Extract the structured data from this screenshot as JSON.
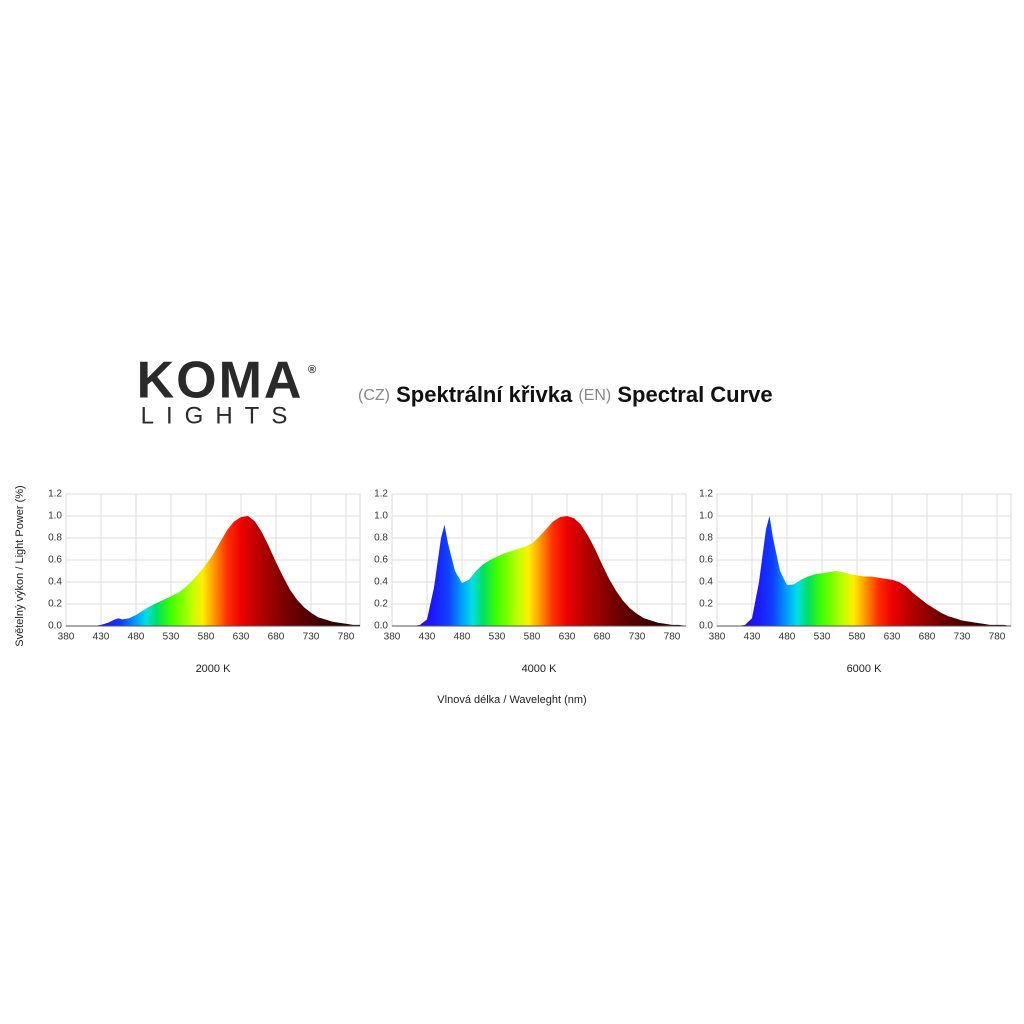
{
  "header": {
    "logo": "KOMA",
    "logo_sub": "LIGHTS",
    "registered": "®",
    "title_parts": [
      "(CZ)",
      "Spektrální křivka",
      "(EN)",
      "Spectral Curve"
    ]
  },
  "axes": {
    "y_label": "Světelný výkon / Light Power (%)",
    "x_label": "Vlnová délka / Waveleght (nm)"
  },
  "spectrum": [
    {
      "nm": 400,
      "color": "#3a00b0"
    },
    {
      "nm": 440,
      "color": "#1a1aff"
    },
    {
      "nm": 460,
      "color": "#1040ff"
    },
    {
      "nm": 480,
      "color": "#00a0ff"
    },
    {
      "nm": 495,
      "color": "#00e0e0"
    },
    {
      "nm": 510,
      "color": "#00e060"
    },
    {
      "nm": 530,
      "color": "#40ff00"
    },
    {
      "nm": 560,
      "color": "#c0ff00"
    },
    {
      "nm": 575,
      "color": "#ffee00"
    },
    {
      "nm": 590,
      "color": "#ffa000"
    },
    {
      "nm": 610,
      "color": "#ff3000"
    },
    {
      "nm": 630,
      "color": "#ee0000"
    },
    {
      "nm": 660,
      "color": "#b00000"
    },
    {
      "nm": 700,
      "color": "#700000"
    },
    {
      "nm": 750,
      "color": "#3a0000"
    },
    {
      "nm": 790,
      "color": "#200000"
    }
  ],
  "chart_data": [
    {
      "type": "area",
      "title": "2000 K",
      "fill": "spectrum",
      "x": [
        380,
        390,
        400,
        410,
        420,
        430,
        440,
        450,
        455,
        460,
        470,
        480,
        490,
        500,
        510,
        520,
        530,
        540,
        550,
        560,
        570,
        580,
        590,
        600,
        610,
        620,
        630,
        640,
        650,
        660,
        670,
        680,
        690,
        700,
        710,
        720,
        730,
        740,
        750,
        760,
        770,
        780,
        790,
        800
      ],
      "values": [
        0,
        0,
        0,
        0,
        0,
        0.01,
        0.03,
        0.06,
        0.07,
        0.06,
        0.07,
        0.1,
        0.14,
        0.18,
        0.21,
        0.24,
        0.27,
        0.3,
        0.35,
        0.41,
        0.48,
        0.56,
        0.65,
        0.76,
        0.87,
        0.95,
        0.99,
        1.0,
        0.95,
        0.85,
        0.72,
        0.58,
        0.45,
        0.33,
        0.24,
        0.17,
        0.12,
        0.08,
        0.06,
        0.04,
        0.03,
        0.02,
        0.01,
        0.01
      ],
      "xlim": [
        380,
        800
      ],
      "xticks": [
        380,
        430,
        480,
        530,
        580,
        630,
        680,
        730,
        780
      ],
      "ylim": [
        0,
        1.2
      ],
      "yticks": [
        {
          "value": 0,
          "label": "0.0"
        },
        0.2,
        0.4,
        0.6,
        0.8,
        {
          "value": 1,
          "label": "1.0"
        },
        1.2
      ],
      "grid": true
    },
    {
      "type": "area",
      "title": "4000 K",
      "fill": "spectrum",
      "x": [
        380,
        390,
        400,
        410,
        420,
        430,
        440,
        450,
        455,
        460,
        470,
        480,
        490,
        500,
        510,
        520,
        530,
        540,
        550,
        560,
        570,
        580,
        590,
        600,
        610,
        620,
        630,
        640,
        650,
        660,
        670,
        680,
        690,
        700,
        710,
        720,
        730,
        740,
        750,
        760,
        770,
        780,
        790,
        800
      ],
      "values": [
        0,
        0,
        0,
        0,
        0.01,
        0.06,
        0.35,
        0.8,
        0.92,
        0.75,
        0.5,
        0.39,
        0.42,
        0.5,
        0.56,
        0.6,
        0.63,
        0.66,
        0.68,
        0.7,
        0.72,
        0.75,
        0.81,
        0.88,
        0.95,
        0.99,
        1.0,
        0.98,
        0.92,
        0.82,
        0.7,
        0.56,
        0.43,
        0.32,
        0.23,
        0.16,
        0.11,
        0.07,
        0.05,
        0.03,
        0.02,
        0.01,
        0.01,
        0
      ],
      "xlim": [
        380,
        800
      ],
      "xticks": [
        380,
        430,
        480,
        530,
        580,
        630,
        680,
        730,
        780
      ],
      "ylim": [
        0,
        1.2
      ],
      "yticks": [
        {
          "value": 0,
          "label": "0.0"
        },
        0.2,
        0.4,
        0.6,
        0.8,
        {
          "value": 1,
          "label": "1.0"
        },
        1.2
      ],
      "grid": true
    },
    {
      "type": "area",
      "title": "6000 K",
      "fill": "spectrum",
      "x": [
        380,
        390,
        400,
        410,
        420,
        430,
        440,
        450,
        455,
        460,
        470,
        480,
        490,
        500,
        510,
        520,
        530,
        540,
        550,
        560,
        570,
        580,
        590,
        600,
        610,
        620,
        630,
        640,
        650,
        660,
        670,
        680,
        690,
        700,
        710,
        720,
        730,
        740,
        750,
        760,
        770,
        780,
        790,
        800
      ],
      "values": [
        0,
        0,
        0,
        0,
        0.01,
        0.07,
        0.4,
        0.88,
        1.0,
        0.8,
        0.5,
        0.37,
        0.38,
        0.42,
        0.45,
        0.47,
        0.48,
        0.49,
        0.5,
        0.49,
        0.47,
        0.46,
        0.45,
        0.45,
        0.44,
        0.43,
        0.42,
        0.4,
        0.36,
        0.3,
        0.25,
        0.2,
        0.16,
        0.12,
        0.09,
        0.07,
        0.05,
        0.04,
        0.03,
        0.02,
        0.01,
        0.01,
        0.01,
        0
      ],
      "xlim": [
        380,
        800
      ],
      "xticks": [
        380,
        430,
        480,
        530,
        580,
        630,
        680,
        730,
        780
      ],
      "ylim": [
        0,
        1.2
      ],
      "yticks": [
        {
          "value": 0,
          "label": "0.0"
        },
        0.2,
        0.4,
        0.6,
        0.8,
        {
          "value": 1,
          "label": "1.0"
        },
        1.2
      ],
      "grid": true
    }
  ]
}
